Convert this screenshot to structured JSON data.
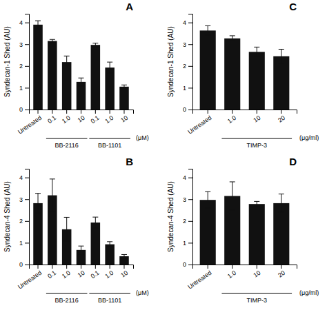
{
  "chart_data": [
    {
      "type": "bar",
      "title": "A",
      "ylabel": "Syndecan-1 Shed (AU)",
      "categories": [
        "Untreated",
        "0.1",
        "1.0",
        "10",
        "0.1",
        "1.0",
        "10"
      ],
      "values": [
        3.9,
        3.15,
        2.18,
        1.27,
        2.97,
        1.93,
        1.05
      ],
      "errors": [
        0.18,
        0.07,
        0.28,
        0.18,
        0.08,
        0.25,
        0.08
      ],
      "color": "#111111",
      "ylim": [
        0,
        4.4
      ],
      "yticks": [
        0,
        1,
        2,
        3,
        4
      ],
      "group_labels": [
        "BB-2116",
        "BB-1101"
      ],
      "units_label": "(μM)"
    },
    {
      "type": "bar",
      "title": "B",
      "ylabel": "Syndecan-4 Shed (AU)",
      "categories": [
        "Untreated",
        "0.1",
        "1.0",
        "10",
        "0.1",
        "1.0",
        "10"
      ],
      "values": [
        2.82,
        3.18,
        1.62,
        0.67,
        1.93,
        0.93,
        0.38
      ],
      "errors": [
        0.45,
        0.75,
        0.55,
        0.18,
        0.25,
        0.12,
        0.08
      ],
      "color": "#111111",
      "ylim": [
        0,
        4.4
      ],
      "yticks": [
        0,
        1,
        2,
        3,
        4
      ],
      "group_labels": [
        "BB-2116",
        "BB-1101"
      ],
      "units_label": "(μM)"
    },
    {
      "type": "bar",
      "title": "C",
      "ylabel": "Syndecan-1 Shed (AU)",
      "categories": [
        "Untreated",
        "1.0",
        "10",
        "20"
      ],
      "values": [
        3.63,
        3.27,
        2.65,
        2.45
      ],
      "errors": [
        0.22,
        0.12,
        0.22,
        0.32
      ],
      "color": "#111111",
      "ylim": [
        0,
        4.4
      ],
      "yticks": [
        0,
        1,
        2,
        3,
        4
      ],
      "group_labels": [
        "TIMP-3"
      ],
      "units_label": "(μg/ml)"
    },
    {
      "type": "bar",
      "title": "D",
      "ylabel": "Syndecan-4 Shed (AU)",
      "categories": [
        "Untreated",
        "1.0",
        "10",
        "20"
      ],
      "values": [
        2.97,
        3.15,
        2.78,
        2.82
      ],
      "errors": [
        0.38,
        0.65,
        0.12,
        0.42
      ],
      "color": "#111111",
      "ylim": [
        0,
        4.4
      ],
      "yticks": [
        0,
        1,
        2,
        3,
        4
      ],
      "group_labels": [
        "TIMP-3"
      ],
      "units_label": "(μg/ml)"
    }
  ]
}
